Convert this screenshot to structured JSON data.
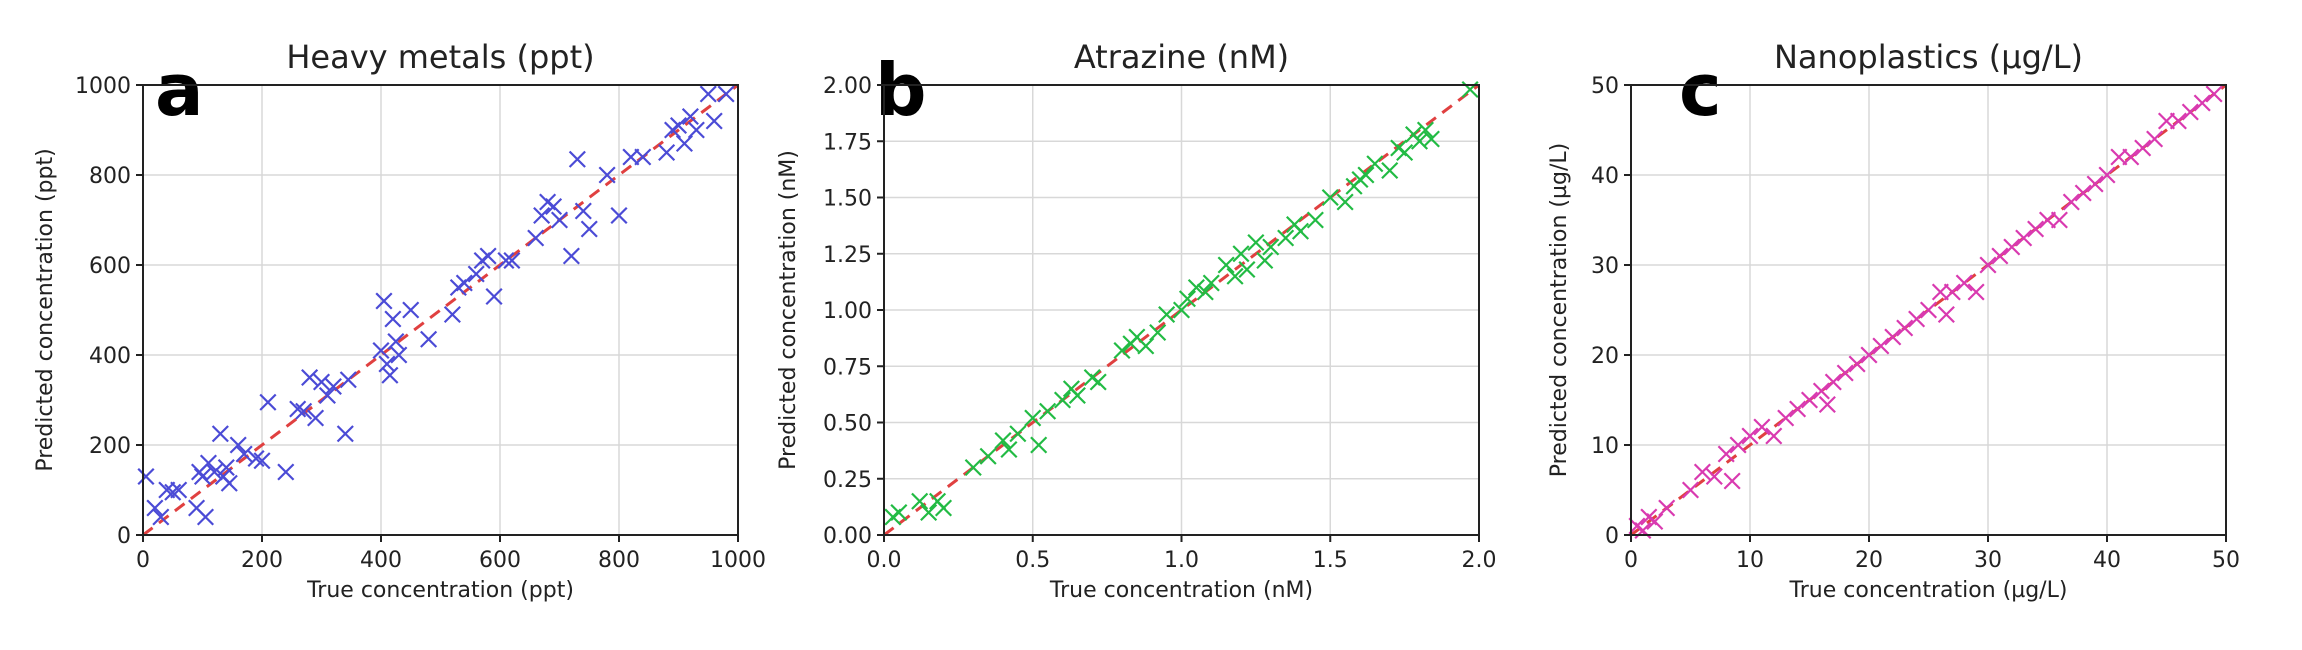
{
  "chart_data": [
    {
      "type": "scatter",
      "panel": "a",
      "title": "Heavy metals (ppt)",
      "xlabel": "True concentration (ppt)",
      "ylabel": "Predicted concentration (ppt)",
      "xlim": [
        0,
        1000
      ],
      "ylim": [
        0,
        1000
      ],
      "xticks": [
        0,
        200,
        400,
        600,
        800,
        1000
      ],
      "yticks": [
        0,
        200,
        400,
        600,
        800,
        1000
      ],
      "xtick_labels": [
        "0",
        "200",
        "400",
        "600",
        "800",
        "1000"
      ],
      "ytick_labels": [
        "0",
        "200",
        "400",
        "600",
        "800",
        "1000"
      ],
      "grid": true,
      "marker_color": "#4b4bd6",
      "line_color": "#e04040",
      "x": [
        5,
        20,
        30,
        40,
        50,
        60,
        90,
        95,
        100,
        105,
        110,
        120,
        130,
        135,
        140,
        145,
        160,
        170,
        190,
        200,
        210,
        240,
        260,
        270,
        280,
        290,
        300,
        310,
        320,
        340,
        345,
        400,
        405,
        410,
        415,
        420,
        425,
        430,
        450,
        480,
        520,
        530,
        540,
        560,
        570,
        580,
        590,
        610,
        620,
        660,
        670,
        680,
        690,
        700,
        720,
        730,
        740,
        750,
        780,
        800,
        820,
        840,
        880,
        890,
        900,
        910,
        920,
        930,
        950,
        960,
        980
      ],
      "y": [
        130,
        60,
        40,
        100,
        95,
        100,
        60,
        140,
        130,
        40,
        160,
        140,
        225,
        130,
        150,
        115,
        200,
        180,
        170,
        165,
        295,
        140,
        280,
        275,
        350,
        260,
        340,
        310,
        330,
        225,
        345,
        410,
        520,
        380,
        355,
        480,
        430,
        400,
        500,
        435,
        490,
        550,
        560,
        580,
        610,
        620,
        530,
        610,
        610,
        660,
        710,
        740,
        730,
        700,
        620,
        835,
        720,
        680,
        800,
        710,
        840,
        840,
        850,
        900,
        910,
        870,
        930,
        900,
        980,
        920,
        980
      ]
    },
    {
      "type": "scatter",
      "panel": "b",
      "title": "Atrazine (nM)",
      "xlabel": "True concentration (nM)",
      "ylabel": "Predicted concentration (nM)",
      "xlim": [
        0,
        2.0
      ],
      "ylim": [
        0,
        2.0
      ],
      "xticks": [
        0,
        0.5,
        1.0,
        1.5,
        2.0
      ],
      "yticks": [
        0,
        0.25,
        0.5,
        0.75,
        1.0,
        1.25,
        1.5,
        1.75,
        2.0
      ],
      "xtick_labels": [
        "0.0",
        "0.5",
        "1.0",
        "1.5",
        "2.0"
      ],
      "ytick_labels": [
        "0.00",
        "0.25",
        "0.50",
        "0.75",
        "1.00",
        "1.25",
        "1.50",
        "1.75",
        "2.00"
      ],
      "grid": true,
      "marker_color": "#22bb44",
      "line_color": "#e04040",
      "x": [
        0.03,
        0.05,
        0.12,
        0.15,
        0.18,
        0.2,
        0.3,
        0.35,
        0.4,
        0.42,
        0.45,
        0.5,
        0.52,
        0.55,
        0.6,
        0.63,
        0.65,
        0.7,
        0.72,
        0.8,
        0.83,
        0.85,
        0.88,
        0.92,
        0.95,
        1.0,
        1.02,
        1.05,
        1.08,
        1.1,
        1.15,
        1.18,
        1.2,
        1.22,
        1.25,
        1.28,
        1.3,
        1.35,
        1.38,
        1.4,
        1.45,
        1.5,
        1.55,
        1.58,
        1.6,
        1.62,
        1.65,
        1.7,
        1.73,
        1.75,
        1.78,
        1.8,
        1.82,
        1.84,
        1.97
      ],
      "y": [
        0.08,
        0.1,
        0.15,
        0.1,
        0.15,
        0.12,
        0.3,
        0.35,
        0.42,
        0.38,
        0.45,
        0.52,
        0.4,
        0.55,
        0.6,
        0.65,
        0.62,
        0.7,
        0.68,
        0.82,
        0.85,
        0.88,
        0.84,
        0.9,
        0.98,
        1.0,
        1.05,
        1.1,
        1.08,
        1.12,
        1.2,
        1.15,
        1.25,
        1.18,
        1.3,
        1.22,
        1.28,
        1.32,
        1.38,
        1.35,
        1.4,
        1.5,
        1.48,
        1.55,
        1.58,
        1.6,
        1.65,
        1.62,
        1.72,
        1.7,
        1.78,
        1.75,
        1.8,
        1.76,
        1.98
      ]
    },
    {
      "type": "scatter",
      "panel": "c",
      "title": "Nanoplastics (µg/L)",
      "xlabel": "True concentration (µg/L)",
      "ylabel": "Predicted concentration (µg/L)",
      "xlim": [
        0,
        50
      ],
      "ylim": [
        0,
        50
      ],
      "xticks": [
        0,
        10,
        20,
        30,
        40,
        50
      ],
      "yticks": [
        0,
        10,
        20,
        30,
        40,
        50
      ],
      "xtick_labels": [
        "0",
        "10",
        "20",
        "30",
        "40",
        "50"
      ],
      "ytick_labels": [
        "0",
        "10",
        "20",
        "30",
        "40",
        "50"
      ],
      "grid": true,
      "marker_color": "#d93ab0",
      "line_color": "#e04040",
      "x": [
        0.5,
        1,
        1.5,
        2,
        3,
        5,
        6,
        7,
        8,
        8.5,
        9,
        10,
        11,
        12,
        13,
        14,
        15,
        16,
        16.5,
        17,
        18,
        19,
        20,
        21,
        22,
        23,
        24,
        25,
        26,
        26.5,
        27,
        28,
        29,
        30,
        31,
        32,
        33,
        34,
        35,
        36,
        37,
        38,
        39,
        40,
        41,
        42,
        43,
        44,
        45,
        46,
        47,
        48,
        49
      ],
      "y": [
        1,
        0.5,
        2,
        1.5,
        3,
        5,
        7,
        6.5,
        9,
        6,
        10,
        11,
        12,
        11,
        13,
        14,
        15,
        16,
        14.5,
        17,
        18,
        19,
        20,
        21,
        22,
        23,
        24,
        25,
        27,
        24.5,
        27,
        28,
        27,
        30,
        31,
        32,
        33,
        34,
        35,
        35,
        37,
        38,
        39,
        40,
        42,
        42,
        43,
        44,
        46,
        46,
        47,
        48,
        49
      ]
    }
  ]
}
